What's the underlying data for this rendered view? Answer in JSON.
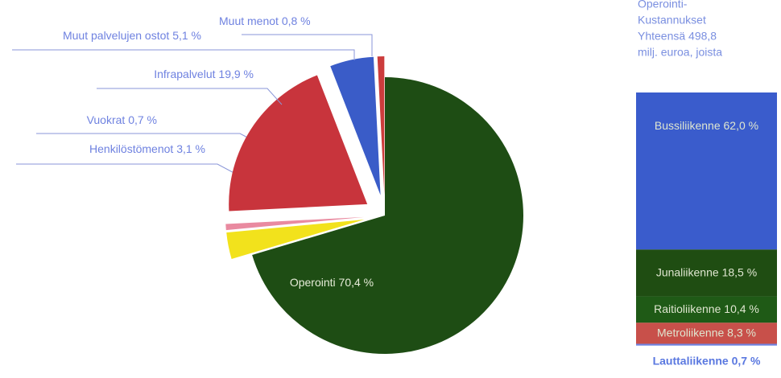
{
  "chart_data": [
    {
      "type": "pie",
      "categories": [
        "Operointi",
        "Henkilöstömenot",
        "Vuokrat",
        "Infrapalvelut",
        "Muut palvelujen ostot",
        "Muut menot"
      ],
      "values": [
        70.4,
        3.1,
        0.7,
        19.9,
        5.1,
        0.8
      ],
      "value_labels": [
        "70,4 %",
        "3,1 %",
        "0,7 %",
        "19,9 %",
        "5,1 %",
        "0,8 %"
      ],
      "colors": [
        "#1e4d14",
        "#f2e21c",
        "#e98aa0",
        "#c8343c",
        "#3a5cc8",
        "#cc3c3c"
      ]
    },
    {
      "type": "stacked_bar",
      "title_lines": [
        "Operointi-",
        "Kustannukset",
        "Yhteensä 498,8",
        "milj. euroa, joista"
      ],
      "categories": [
        "Bussiliikenne",
        "Junaliikenne",
        "Raitioliikenne",
        "Metroliikenne",
        "Lauttaliikenne"
      ],
      "values": [
        62.0,
        18.5,
        10.4,
        8.3,
        0.7
      ],
      "value_labels": [
        "62,0 %",
        "18,5 %",
        "10,4 %",
        "8,3 %",
        "0,7 %"
      ],
      "colors": [
        "#3a5ccc",
        "#1f4d12",
        "#1f5a16",
        "#c8504a",
        "#6f82e0"
      ]
    }
  ]
}
